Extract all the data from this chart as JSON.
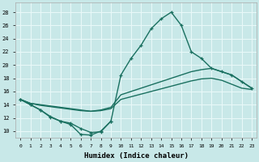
{
  "xlabel": "Humidex (Indice chaleur)",
  "bg_color": "#c8e8e8",
  "grid_color": "#e8f8f8",
  "line_color": "#1a7060",
  "xlim": [
    -0.5,
    23.5
  ],
  "ylim": [
    9,
    29.5
  ],
  "yticks": [
    10,
    12,
    14,
    16,
    18,
    20,
    22,
    24,
    26,
    28
  ],
  "xticks": [
    0,
    1,
    2,
    3,
    4,
    5,
    6,
    7,
    8,
    9,
    10,
    11,
    12,
    13,
    14,
    15,
    16,
    17,
    18,
    19,
    20,
    21,
    22,
    23
  ],
  "peak_x": [
    0,
    1,
    2,
    3,
    4,
    5,
    6,
    7,
    8,
    9,
    10,
    11,
    12,
    13,
    14,
    15,
    16,
    17,
    18,
    19,
    20,
    21,
    22,
    23
  ],
  "peak_y": [
    14.8,
    14.0,
    13.2,
    12.1,
    11.5,
    11.0,
    9.5,
    9.4,
    10.0,
    11.5,
    18.5,
    21.0,
    23.0,
    25.5,
    27.0,
    28.0,
    26.0,
    22.0,
    21.0,
    19.5,
    19.0,
    18.5,
    17.5,
    16.5
  ],
  "low_x": [
    0,
    1,
    2,
    3,
    4,
    5,
    6,
    7,
    8,
    9
  ],
  "low_y": [
    14.8,
    14.0,
    13.2,
    12.2,
    11.5,
    11.2,
    10.4,
    9.8,
    9.9,
    11.5
  ],
  "line_a_x": [
    0,
    1,
    2,
    3,
    4,
    5,
    6,
    7,
    8,
    9,
    10,
    11,
    12,
    13,
    14,
    15,
    16,
    17,
    18,
    19,
    20,
    21,
    22,
    23
  ],
  "line_a_y": [
    14.8,
    14.2,
    13.9,
    13.7,
    13.5,
    13.3,
    13.1,
    13.0,
    13.1,
    13.4,
    14.8,
    15.2,
    15.6,
    16.0,
    16.4,
    16.8,
    17.2,
    17.6,
    17.9,
    18.0,
    17.7,
    17.1,
    16.5,
    16.3
  ],
  "line_b_x": [
    0,
    1,
    2,
    3,
    4,
    5,
    6,
    7,
    8,
    9,
    10,
    11,
    12,
    13,
    14,
    15,
    16,
    17,
    18,
    19,
    20,
    21,
    22,
    23
  ],
  "line_b_y": [
    14.8,
    14.2,
    14.0,
    13.8,
    13.6,
    13.4,
    13.2,
    13.0,
    13.2,
    13.6,
    15.5,
    16.0,
    16.5,
    17.0,
    17.5,
    18.0,
    18.5,
    19.0,
    19.3,
    19.5,
    19.0,
    18.5,
    17.5,
    16.5
  ]
}
